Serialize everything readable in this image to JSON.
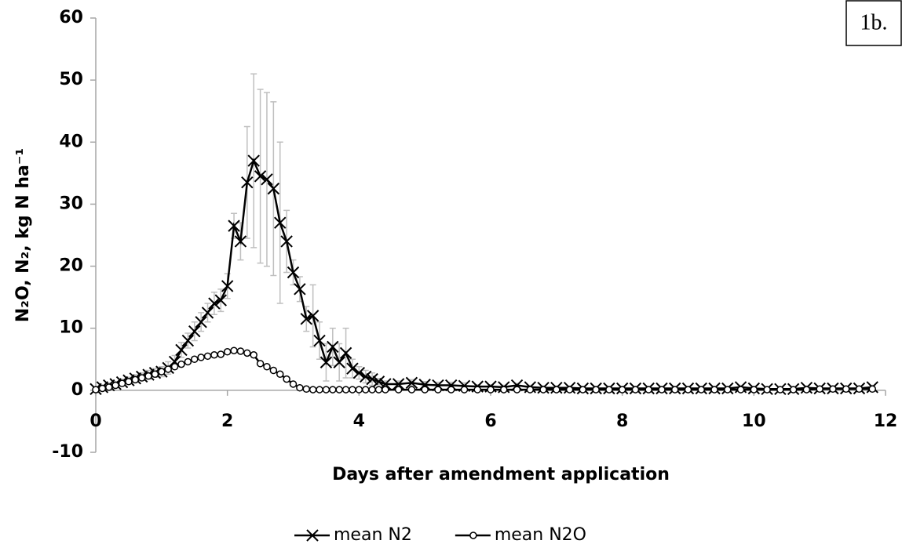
{
  "chart_data": {
    "type": "line",
    "annotation": "1b.",
    "x_label": "Days after amendment application",
    "y_label": "N₂O, N₂, kg N ha⁻¹",
    "x": [
      0,
      0.1,
      0.2,
      0.3,
      0.4,
      0.5,
      0.6,
      0.7,
      0.8,
      0.9,
      1.0,
      1.1,
      1.2,
      1.3,
      1.4,
      1.5,
      1.6,
      1.7,
      1.8,
      1.9,
      2.0,
      2.1,
      2.2,
      2.3,
      2.4,
      2.5,
      2.6,
      2.7,
      2.8,
      2.9,
      3.0,
      3.1,
      3.2,
      3.3,
      3.4,
      3.5,
      3.6,
      3.7,
      3.8,
      3.9,
      4.0,
      4.1,
      4.2,
      4.3,
      4.4,
      4.6,
      4.8,
      5.0,
      5.2,
      5.4,
      5.6,
      5.8,
      6.0,
      6.2,
      6.4,
      6.6,
      6.8,
      7.0,
      7.2,
      7.4,
      7.6,
      7.8,
      8.0,
      8.2,
      8.4,
      8.6,
      8.8,
      9.0,
      9.2,
      9.4,
      9.6,
      9.8,
      10.0,
      10.2,
      10.4,
      10.6,
      10.8,
      11.0,
      11.2,
      11.4,
      11.6,
      11.8
    ],
    "series": [
      {
        "name": "mean N2",
        "color": "#000000",
        "marker": "x",
        "error_color": "#bfbfbf",
        "values": [
          0.2,
          0.5,
          0.8,
          1.0,
          1.3,
          1.6,
          1.9,
          2.2,
          2.5,
          2.8,
          3.0,
          3.6,
          4.6,
          6.5,
          8.0,
          9.5,
          11.0,
          12.5,
          14.0,
          14.5,
          16.8,
          26.5,
          24.0,
          33.5,
          37.0,
          34.5,
          34.0,
          32.5,
          27.0,
          24.0,
          19.0,
          16.3,
          11.5,
          12.0,
          8.0,
          4.5,
          7.0,
          4.5,
          6.0,
          3.5,
          2.8,
          2.2,
          1.8,
          1.4,
          1.0,
          1.0,
          1.2,
          0.9,
          0.8,
          0.8,
          0.7,
          0.6,
          0.6,
          0.5,
          0.8,
          0.5,
          0.4,
          0.4,
          0.4,
          0.3,
          0.3,
          0.3,
          0.3,
          0.3,
          0.3,
          0.3,
          0.3,
          0.3,
          0.3,
          0.3,
          0.3,
          0.5,
          0.3,
          0.2,
          0.2,
          0.2,
          0.4,
          0.3,
          0.3,
          0.3,
          0.3,
          0.5
        ],
        "errors": [
          0.3,
          0.3,
          0.4,
          0.4,
          0.5,
          0.5,
          0.6,
          0.6,
          0.7,
          0.7,
          0.8,
          1.0,
          1.0,
          1.2,
          1.2,
          1.5,
          1.5,
          1.5,
          1.8,
          1.8,
          2.0,
          2.0,
          3.0,
          9.0,
          14.0,
          14.0,
          14.0,
          14.0,
          13.0,
          5.0,
          2.0,
          2.0,
          2.0,
          5.0,
          3.0,
          3.0,
          3.0,
          3.0,
          4.0,
          1.5,
          1.0,
          1.0,
          1.0,
          0.5,
          0.5,
          0.5,
          0.5,
          0.5,
          0.5,
          0.5,
          0.5,
          0.3,
          0.3,
          0.3,
          0.3,
          0.3,
          0.3,
          0.3,
          0.3,
          0.3,
          0.3,
          0.3,
          0.3,
          0.3,
          0.3,
          0.3,
          0.3,
          0.3,
          0.3,
          0.3,
          0.3,
          0.3,
          0.3,
          0.3,
          0.3,
          0.3,
          0.3,
          0.3,
          0.3,
          0.3,
          0.3,
          0.3
        ]
      },
      {
        "name": "mean N2O",
        "color": "#000000",
        "marker": "o",
        "values": [
          0.1,
          0.3,
          0.5,
          0.8,
          1.1,
          1.4,
          1.7,
          2.0,
          2.3,
          2.6,
          3.0,
          3.4,
          3.8,
          4.2,
          4.6,
          5.0,
          5.3,
          5.5,
          5.7,
          5.8,
          6.2,
          6.4,
          6.3,
          6.0,
          5.7,
          4.3,
          3.8,
          3.2,
          2.6,
          1.8,
          1.0,
          0.4,
          0.2,
          0.1,
          0.1,
          0.1,
          0.1,
          0.1,
          0.1,
          0.1,
          0.1,
          0.1,
          0.1,
          0.1,
          0.1,
          0.1,
          0.1,
          0.1,
          0.1,
          0.1,
          0.1,
          0.1,
          0.1,
          0.1,
          0.1,
          0.1,
          0.1,
          0.1,
          0.1,
          0.1,
          0.1,
          0.1,
          0.1,
          0.1,
          0.1,
          0.1,
          0.1,
          0.1,
          0.1,
          0.1,
          0.1,
          0.1,
          0.1,
          0.1,
          0.1,
          0.1,
          0.1,
          0.2,
          0.2,
          0.2,
          0.2,
          0.2
        ]
      }
    ],
    "xlim": [
      0,
      12
    ],
    "ylim": [
      -10,
      60
    ],
    "xticks": [
      0,
      2,
      4,
      6,
      8,
      10,
      12
    ],
    "yticks": [
      -10,
      0,
      10,
      20,
      30,
      40,
      50,
      60
    ],
    "grid": false,
    "legend": "bottom"
  }
}
